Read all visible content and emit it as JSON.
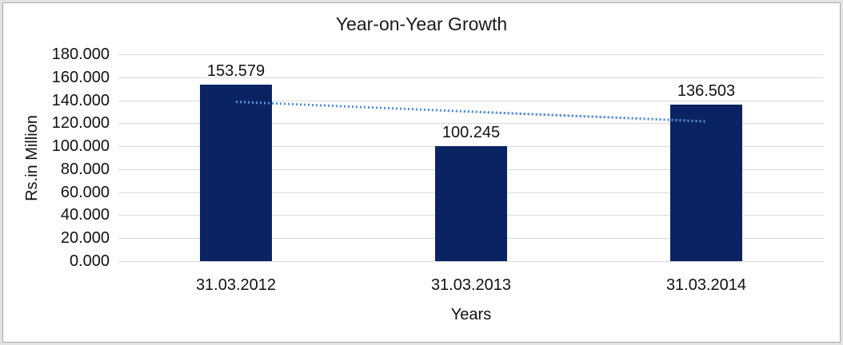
{
  "chart_data": {
    "type": "bar",
    "title": "Year-on-Year Growth",
    "xlabel": "Years",
    "ylabel": "Rs.in Million",
    "categories": [
      "31.03.2012",
      "31.03.2013",
      "31.03.2014"
    ],
    "values": [
      153.579,
      100.245,
      136.503
    ],
    "data_labels": [
      "153.579",
      "100.245",
      "136.503"
    ],
    "y_ticks": [
      "0.000",
      "20.000",
      "40.000",
      "60.000",
      "80.000",
      "100.000",
      "120.000",
      "140.000",
      "160.000",
      "180.000"
    ],
    "ylim": [
      0,
      180
    ],
    "y_tick_step": 20,
    "grid": "horizontal",
    "legend": "none",
    "colors": {
      "bar": "#0a2463",
      "trendline": "#5b8fd6",
      "gridline": "#d9d9d9",
      "text": "#111111",
      "frame_outer": "#e3e3e3",
      "frame_inner": "#a9a9a9"
    },
    "trendline": {
      "type": "linear",
      "style": "dotted",
      "start_value": 138.647,
      "end_value": 121.571
    }
  }
}
